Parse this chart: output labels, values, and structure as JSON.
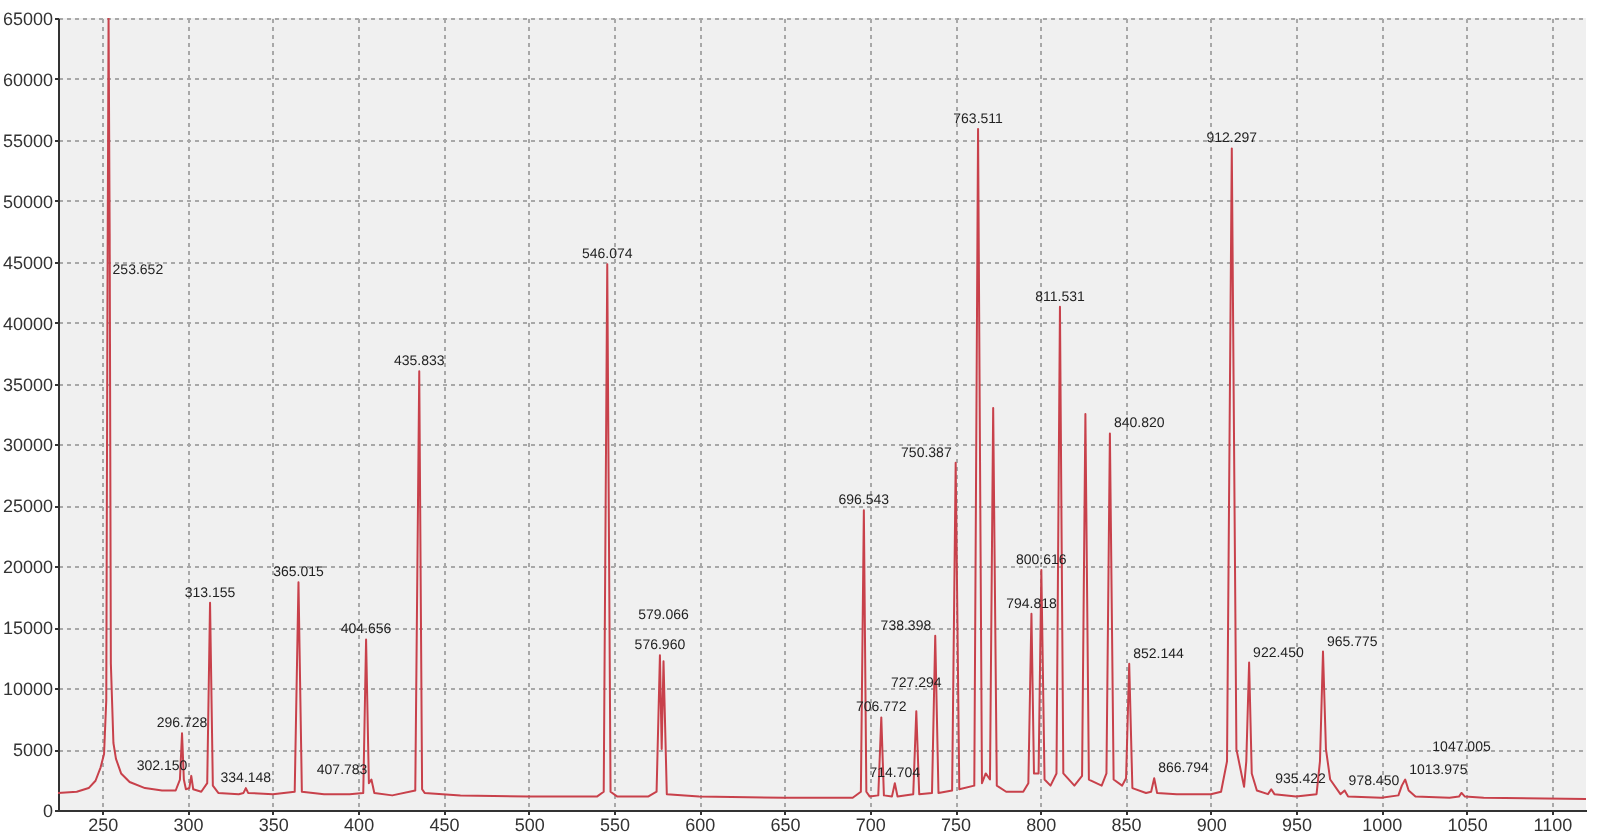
{
  "chart_data": {
    "type": "line",
    "x": [
      224,
      235,
      242,
      246,
      249,
      251,
      252.3,
      253,
      253.652,
      254.3,
      255,
      256.5,
      258,
      261,
      266,
      275,
      285,
      293,
      295.5,
      296.728,
      297.8,
      299,
      301,
      302.15,
      303.3,
      308,
      311.5,
      313.155,
      314.8,
      318,
      330,
      332.8,
      334.148,
      335.5,
      350,
      362.8,
      365.015,
      367,
      380,
      395,
      403,
      404.656,
      406.3,
      407.783,
      409.5,
      420,
      433.5,
      435.833,
      437.5,
      439,
      460,
      500,
      540,
      544,
      546.074,
      548,
      552,
      570,
      575,
      576.96,
      578,
      579.066,
      581,
      600,
      650,
      690,
      694.8,
      696.543,
      698,
      700,
      705,
      706.772,
      708.3,
      713,
      714.704,
      716.3,
      725.5,
      727.294,
      729,
      736.5,
      738.398,
      740.3,
      748.3,
      750.387,
      752.5,
      761.3,
      763.511,
      765.8,
      768,
      770.5,
      772.376,
      774.5,
      780,
      790,
      793,
      794.818,
      796.3,
      799,
      800.616,
      802.5,
      806,
      809.5,
      811.531,
      813.5,
      820,
      824.5,
      826.452,
      828.5,
      836,
      838.8,
      840.82,
      843,
      848,
      850.3,
      852.144,
      854,
      862,
      865,
      866.794,
      868.5,
      880,
      900,
      906,
      909.5,
      912.297,
      915,
      919.5,
      920.8,
      922.45,
      924,
      927,
      933.5,
      935.422,
      937.3,
      950,
      962,
      964,
      965.775,
      967.5,
      970,
      976,
      978.45,
      980.5,
      1000,
      1010,
      1012,
      1013.975,
      1016,
      1020,
      1040,
      1045.5,
      1047.005,
      1049,
      1060,
      1120
    ],
    "values": [
      1400,
      1500,
      1800,
      2400,
      3500,
      4600,
      9000,
      41500,
      65000,
      47300,
      12000,
      5500,
      4200,
      3000,
      2300,
      1800,
      1600,
      1600,
      2500,
      6300,
      2500,
      1700,
      1800,
      2800,
      1700,
      1500,
      2200,
      17000,
      2000,
      1400,
      1300,
      1400,
      1800,
      1400,
      1300,
      1500,
      18700,
      1500,
      1300,
      1300,
      1400,
      14000,
      2200,
      2500,
      1400,
      1200,
      1600,
      36000,
      1700,
      1400,
      1200,
      1100,
      1100,
      1500,
      44800,
      1500,
      1100,
      1100,
      1500,
      12700,
      5000,
      12200,
      1300,
      1100,
      1000,
      1000,
      1500,
      24600,
      1500,
      1100,
      1200,
      7600,
      1200,
      1100,
      2200,
      1100,
      1300,
      8100,
      1300,
      1400,
      14300,
      1400,
      1600,
      28500,
      1700,
      2000,
      55900,
      2200,
      3000,
      2500,
      33000,
      2000,
      1500,
      1500,
      2200,
      16100,
      3000,
      3000,
      19700,
      2500,
      2000,
      3000,
      41300,
      3000,
      2000,
      2800,
      32500,
      2500,
      2000,
      3000,
      30900,
      2500,
      2000,
      2600,
      12000,
      1800,
      1400,
      1500,
      2600,
      1400,
      1300,
      1300,
      1500,
      4000,
      54300,
      5000,
      1900,
      4000,
      12100,
      3000,
      1600,
      1300,
      1700,
      1300,
      1100,
      1300,
      4000,
      13000,
      5000,
      2500,
      1300,
      1600,
      1100,
      1000,
      1200,
      2000,
      2500,
      1600,
      1100,
      1000,
      1100,
      1400,
      1100,
      1000,
      900
    ],
    "color": "#c8414b",
    "xlim": [
      224,
      1120
    ],
    "ylim": [
      0,
      65000
    ],
    "xticks": [
      250,
      300,
      350,
      400,
      450,
      500,
      550,
      600,
      650,
      700,
      750,
      800,
      850,
      900,
      950,
      1000,
      1050,
      1100
    ],
    "yticks": [
      0,
      5000,
      10000,
      15000,
      20000,
      25000,
      30000,
      35000,
      40000,
      45000,
      50000,
      55000,
      60000,
      65000
    ],
    "grid": true,
    "annotations": [
      {
        "text": "253.652",
        "x": 253.652,
        "y": 43500
      },
      {
        "text": "296.728",
        "x": 296.728,
        "y": 6300
      },
      {
        "text": "302.150",
        "x": 302.15,
        "y": 2800
      },
      {
        "text": "313.155",
        "x": 313.155,
        "y": 17000
      },
      {
        "text": "334.148",
        "x": 334.148,
        "y": 1800
      },
      {
        "text": "365.015",
        "x": 365.015,
        "y": 18700
      },
      {
        "text": "404.656",
        "x": 404.656,
        "y": 14000
      },
      {
        "text": "407.783",
        "x": 407.783,
        "y": 2500
      },
      {
        "text": "435.833",
        "x": 435.833,
        "y": 36000
      },
      {
        "text": "546.074",
        "x": 546.074,
        "y": 44800
      },
      {
        "text": "576.960",
        "x": 576.96,
        "y": 12700
      },
      {
        "text": "579.066",
        "x": 579.066,
        "y": 12200
      },
      {
        "text": "696.543",
        "x": 696.543,
        "y": 24600
      },
      {
        "text": "706.772",
        "x": 706.772,
        "y": 7600
      },
      {
        "text": "714.704",
        "x": 714.704,
        "y": 2200
      },
      {
        "text": "727.294",
        "x": 727.294,
        "y": 8100
      },
      {
        "text": "738.398",
        "x": 738.398,
        "y": 14300
      },
      {
        "text": "750.387",
        "x": 750.387,
        "y": 28500
      },
      {
        "text": "763.511",
        "x": 763.511,
        "y": 55900
      },
      {
        "text": "794.818",
        "x": 794.818,
        "y": 16100
      },
      {
        "text": "800.616",
        "x": 800.616,
        "y": 19700
      },
      {
        "text": "811.531",
        "x": 811.531,
        "y": 41300
      },
      {
        "text": "840.820",
        "x": 840.82,
        "y": 30900
      },
      {
        "text": "852.144",
        "x": 852.144,
        "y": 12000
      },
      {
        "text": "866.794",
        "x": 866.794,
        "y": 2600
      },
      {
        "text": "912.297",
        "x": 912.297,
        "y": 54300
      },
      {
        "text": "922.450",
        "x": 922.45,
        "y": 12100
      },
      {
        "text": "935.422",
        "x": 935.422,
        "y": 1700
      },
      {
        "text": "965.775",
        "x": 965.775,
        "y": 13000
      },
      {
        "text": "978.450",
        "x": 978.45,
        "y": 1600
      },
      {
        "text": "1013.975",
        "x": 1013.975,
        "y": 2500
      },
      {
        "text": "1047.005",
        "x": 1047.005,
        "y": 1400
      }
    ]
  }
}
